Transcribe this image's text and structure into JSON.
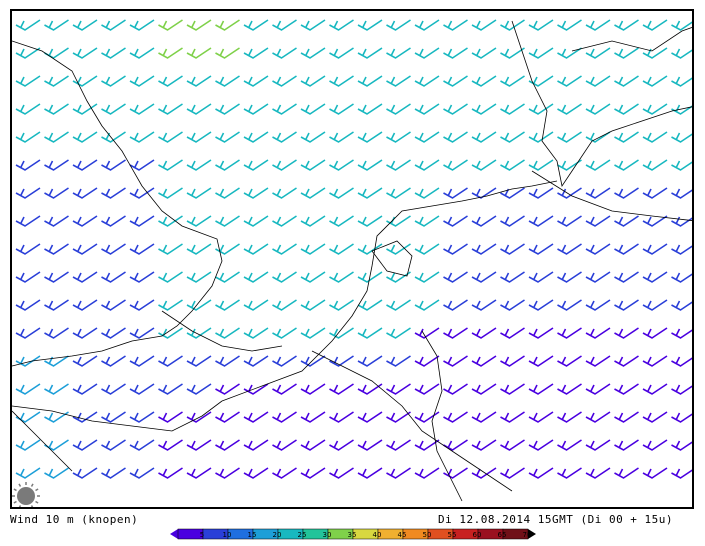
{
  "footer": {
    "variable_label": "Wind 10 m (knopen)",
    "valid_time_label": "Di 12.08.2014 15GMT (Di 00 + 15u)"
  },
  "legend": {
    "ticks": [
      "5",
      "10",
      "15",
      "20",
      "25",
      "30",
      "35",
      "40",
      "45",
      "50",
      "55",
      "60",
      "65",
      "70"
    ],
    "colors": [
      "#4a00e0",
      "#2a3fd8",
      "#1f6fe0",
      "#1d9fd8",
      "#18b8c0",
      "#22c49a",
      "#7fd14a",
      "#d8d840",
      "#f0b030",
      "#f08a20",
      "#e05020",
      "#c82020",
      "#9a1020",
      "#701018"
    ]
  },
  "icons": {
    "logo": "sun-logo-icon"
  },
  "colors": {
    "coast": "#000000",
    "frame": "#000000"
  }
}
